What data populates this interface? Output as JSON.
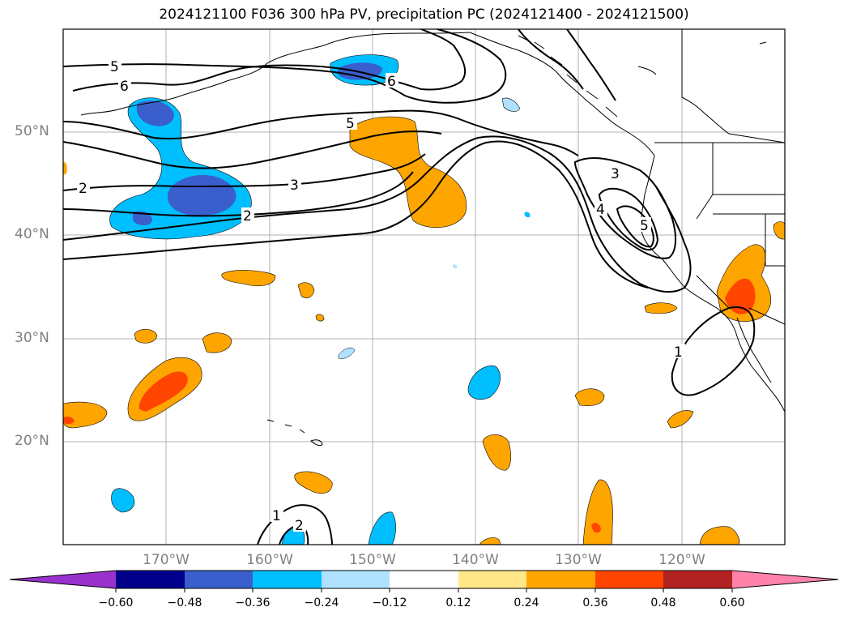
{
  "title": "2024121100 F036 300 hPa PV, precipitation PC (2024121400 - 2024121500)",
  "axes": {
    "lat_labels": [
      "50°N",
      "40°N",
      "30°N",
      "20°N"
    ],
    "lon_labels": [
      "170°W",
      "160°W",
      "150°W",
      "140°W",
      "130°W",
      "120°W"
    ]
  },
  "contour_labels": [
    "5",
    "6",
    "6",
    "5",
    "3",
    "2",
    "2",
    "3",
    "4",
    "5",
    "1",
    "1",
    "2"
  ],
  "colorbar": {
    "ticks": [
      "−0.60",
      "−0.48",
      "−0.36",
      "−0.24",
      "−0.12",
      "0.12",
      "0.24",
      "0.36",
      "0.48",
      "0.60"
    ],
    "colors": [
      "#9932cc",
      "#00008b",
      "#3a5fcd",
      "#00bfff",
      "#b0e2ff",
      "#ffffff",
      "#ffe78a",
      "#ffa500",
      "#ff4500",
      "#b22222",
      "#ff82ab"
    ]
  }
}
